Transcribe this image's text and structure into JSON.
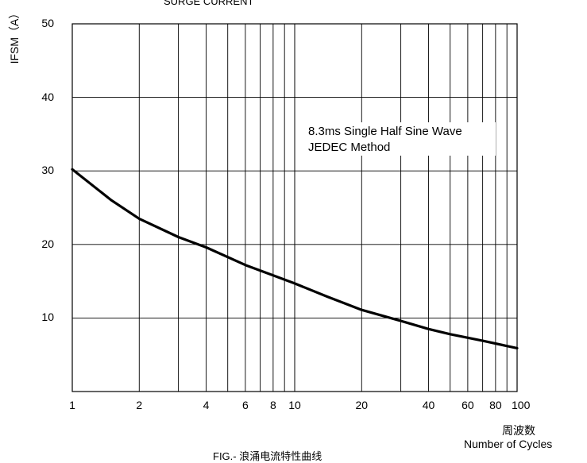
{
  "chart_data": {
    "type": "line",
    "title": "SURGE CURRENT",
    "ylabel": "IFSM（A）",
    "xlabel_cn": "周波数",
    "xlabel": "Number of Cycles",
    "caption": "FIG.- 浪涌电流特性曲线",
    "annotation": [
      "8.3ms Single Half Sine Wave",
      "JEDEC Method"
    ],
    "x_scale": "log",
    "xlim": [
      1,
      100
    ],
    "ylim": [
      0,
      50
    ],
    "x_ticks": [
      1,
      2,
      4,
      6,
      8,
      10,
      20,
      40,
      60,
      80,
      100
    ],
    "x_tick_labels": [
      "1",
      "2",
      "4",
      "6",
      "8",
      "10",
      "20",
      "40",
      "60",
      "80",
      "100"
    ],
    "y_ticks": [
      10,
      20,
      30,
      40,
      50
    ],
    "y_tick_labels": [
      "10",
      "20",
      "30",
      "40",
      "50"
    ],
    "grid": true,
    "series": [
      {
        "x": [
          1,
          1.5,
          2,
          3,
          4,
          6,
          8,
          10,
          14,
          20,
          30,
          40,
          50,
          70,
          100
        ],
        "y": [
          30.2,
          26.0,
          23.5,
          21.0,
          19.6,
          17.2,
          15.8,
          14.7,
          12.9,
          11.1,
          9.6,
          8.5,
          7.8,
          6.9,
          5.9
        ]
      }
    ]
  }
}
